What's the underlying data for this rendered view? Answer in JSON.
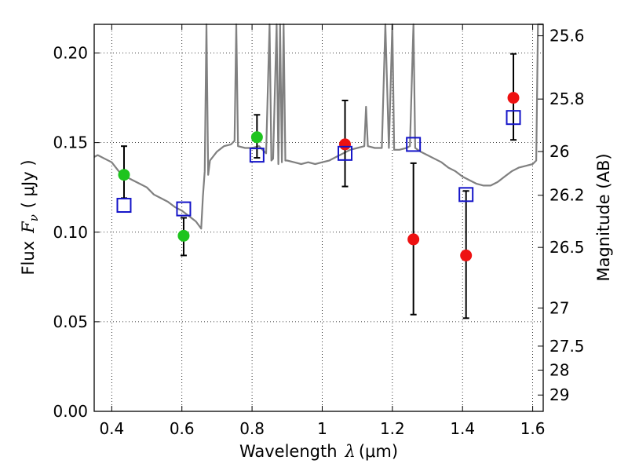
{
  "chart_data": {
    "type": "scatter",
    "xlabel": "Wavelength",
    "xlabel_symbol": "λ",
    "xlabel_unit": "(μm)",
    "ylabel_left": "Flux",
    "ylabel_symbol": "F",
    "ylabel_subscript": "ν",
    "ylabel_unit": "( μJy )",
    "ylabel_right": "Magnitude (AB)",
    "xlim": [
      0.35,
      1.63
    ],
    "ylim": [
      0.0,
      0.216
    ],
    "grid": true,
    "x_ticks": [
      0.4,
      0.6,
      0.8,
      1.0,
      1.2,
      1.4,
      1.6
    ],
    "x_tick_labels": [
      "0.4",
      "0.6",
      "0.8",
      "1",
      "1.2",
      "1.4",
      "1.6"
    ],
    "y_ticks": [
      0.0,
      0.05,
      0.1,
      0.15,
      0.2
    ],
    "y_tick_labels": [
      "0.00",
      "0.05",
      "0.10",
      "0.15",
      "0.20"
    ],
    "right_axis_ticks": [
      {
        "label": "25.6",
        "flux": 0.2096
      },
      {
        "label": "25.8",
        "flux": 0.1743
      },
      {
        "label": "26",
        "flux": 0.145
      },
      {
        "label": "26.2",
        "flux": 0.1206
      },
      {
        "label": "26.5",
        "flux": 0.0915
      },
      {
        "label": "27",
        "flux": 0.0577
      },
      {
        "label": "27.5",
        "flux": 0.0364
      },
      {
        "label": "28",
        "flux": 0.023
      },
      {
        "label": "29",
        "flux": 0.0091
      }
    ],
    "colors": {
      "spectrum": "#808080",
      "green": "#1ec41e",
      "red": "#ee1111",
      "model": "#1414c8",
      "errorbar": "#000000"
    },
    "observed_points": [
      {
        "x": 0.435,
        "y": 0.132,
        "color": "green",
        "yerr_low": 0.119,
        "yerr_high": 0.148
      },
      {
        "x": 0.605,
        "y": 0.098,
        "color": "green",
        "yerr_low": 0.087,
        "yerr_high": 0.108
      },
      {
        "x": 0.814,
        "y": 0.153,
        "color": "green",
        "yerr_low": 0.1415,
        "yerr_high": 0.1655
      },
      {
        "x": 1.065,
        "y": 0.149,
        "color": "red",
        "yerr_low": 0.1255,
        "yerr_high": 0.1735
      },
      {
        "x": 1.26,
        "y": 0.096,
        "color": "red",
        "yerr_low": 0.054,
        "yerr_high": 0.1385
      },
      {
        "x": 1.41,
        "y": 0.087,
        "color": "red",
        "yerr_low": 0.052,
        "yerr_high": 0.123
      },
      {
        "x": 1.545,
        "y": 0.175,
        "color": "red",
        "yerr_low": 0.1515,
        "yerr_high": 0.1995
      }
    ],
    "model_points": [
      {
        "x": 0.435,
        "y": 0.115
      },
      {
        "x": 0.605,
        "y": 0.113
      },
      {
        "x": 0.814,
        "y": 0.143
      },
      {
        "x": 1.065,
        "y": 0.144
      },
      {
        "x": 1.26,
        "y": 0.149
      },
      {
        "x": 1.41,
        "y": 0.121
      },
      {
        "x": 1.545,
        "y": 0.164
      }
    ],
    "spectrum": [
      [
        0.35,
        0.142
      ],
      [
        0.36,
        0.143
      ],
      [
        0.38,
        0.141
      ],
      [
        0.4,
        0.139
      ],
      [
        0.42,
        0.134
      ],
      [
        0.44,
        0.131
      ],
      [
        0.46,
        0.129
      ],
      [
        0.48,
        0.127
      ],
      [
        0.5,
        0.125
      ],
      [
        0.52,
        0.121
      ],
      [
        0.54,
        0.119
      ],
      [
        0.56,
        0.117
      ],
      [
        0.58,
        0.114
      ],
      [
        0.6,
        0.112
      ],
      [
        0.62,
        0.109
      ],
      [
        0.64,
        0.106
      ],
      [
        0.655,
        0.102
      ],
      [
        0.66,
        0.12
      ],
      [
        0.665,
        0.134
      ],
      [
        0.67,
        0.216
      ],
      [
        0.675,
        0.132
      ],
      [
        0.68,
        0.14
      ],
      [
        0.7,
        0.145
      ],
      [
        0.72,
        0.148
      ],
      [
        0.74,
        0.149
      ],
      [
        0.75,
        0.151
      ],
      [
        0.755,
        0.216
      ],
      [
        0.76,
        0.148
      ],
      [
        0.78,
        0.147
      ],
      [
        0.8,
        0.147
      ],
      [
        0.82,
        0.148
      ],
      [
        0.83,
        0.146
      ],
      [
        0.84,
        0.144
      ],
      [
        0.85,
        0.216
      ],
      [
        0.855,
        0.14
      ],
      [
        0.86,
        0.141
      ],
      [
        0.87,
        0.216
      ],
      [
        0.875,
        0.138
      ],
      [
        0.88,
        0.216
      ],
      [
        0.885,
        0.139
      ],
      [
        0.89,
        0.216
      ],
      [
        0.895,
        0.14
      ],
      [
        0.9,
        0.14
      ],
      [
        0.92,
        0.139
      ],
      [
        0.94,
        0.138
      ],
      [
        0.96,
        0.139
      ],
      [
        0.98,
        0.138
      ],
      [
        1.0,
        0.139
      ],
      [
        1.02,
        0.14
      ],
      [
        1.04,
        0.142
      ],
      [
        1.06,
        0.144
      ],
      [
        1.08,
        0.146
      ],
      [
        1.1,
        0.147
      ],
      [
        1.12,
        0.148
      ],
      [
        1.125,
        0.17
      ],
      [
        1.13,
        0.148
      ],
      [
        1.15,
        0.147
      ],
      [
        1.17,
        0.147
      ],
      [
        1.18,
        0.216
      ],
      [
        1.19,
        0.147
      ],
      [
        1.2,
        0.216
      ],
      [
        1.205,
        0.146
      ],
      [
        1.22,
        0.146
      ],
      [
        1.24,
        0.147
      ],
      [
        1.25,
        0.148
      ],
      [
        1.26,
        0.216
      ],
      [
        1.265,
        0.147
      ],
      [
        1.28,
        0.145
      ],
      [
        1.3,
        0.143
      ],
      [
        1.32,
        0.141
      ],
      [
        1.34,
        0.139
      ],
      [
        1.36,
        0.136
      ],
      [
        1.38,
        0.134
      ],
      [
        1.4,
        0.131
      ],
      [
        1.42,
        0.129
      ],
      [
        1.44,
        0.127
      ],
      [
        1.46,
        0.126
      ],
      [
        1.48,
        0.126
      ],
      [
        1.5,
        0.128
      ],
      [
        1.52,
        0.131
      ],
      [
        1.54,
        0.134
      ],
      [
        1.56,
        0.136
      ],
      [
        1.58,
        0.137
      ],
      [
        1.6,
        0.138
      ],
      [
        1.61,
        0.14
      ],
      [
        1.615,
        0.216
      ],
      [
        1.63,
        0.216
      ]
    ]
  }
}
